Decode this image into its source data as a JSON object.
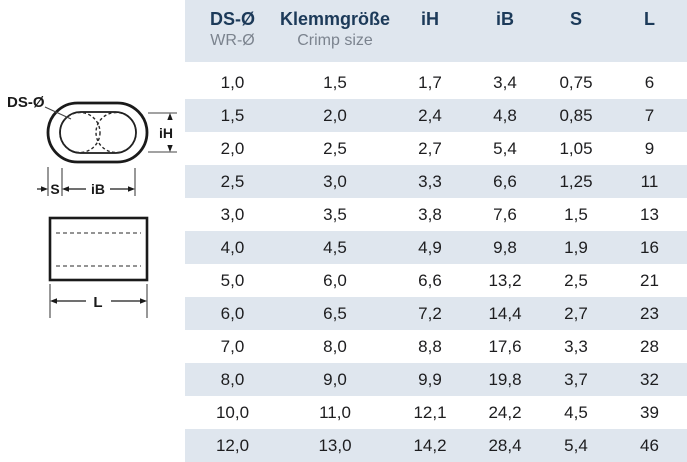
{
  "header": {
    "columns": [
      {
        "label": "DS-Ø",
        "sublabel": "WR-Ø"
      },
      {
        "label": "Klemmgröße",
        "sublabel": "Crimp size"
      },
      {
        "label": "iH",
        "sublabel": ""
      },
      {
        "label": "iB",
        "sublabel": ""
      },
      {
        "label": "S",
        "sublabel": ""
      },
      {
        "label": "L",
        "sublabel": ""
      }
    ]
  },
  "table": {
    "rows": [
      [
        "1,0",
        "1,5",
        "1,7",
        "3,4",
        "0,75",
        "6"
      ],
      [
        "1,5",
        "2,0",
        "2,4",
        "4,8",
        "0,85",
        "7"
      ],
      [
        "2,0",
        "2,5",
        "2,7",
        "5,4",
        "1,05",
        "9"
      ],
      [
        "2,5",
        "3,0",
        "3,3",
        "6,6",
        "1,25",
        "11"
      ],
      [
        "3,0",
        "3,5",
        "3,8",
        "7,6",
        "1,5",
        "13"
      ],
      [
        "4,0",
        "4,5",
        "4,9",
        "9,8",
        "1,9",
        "16"
      ],
      [
        "5,0",
        "6,0",
        "6,6",
        "13,2",
        "2,5",
        "21"
      ],
      [
        "6,0",
        "6,5",
        "7,2",
        "14,4",
        "2,7",
        "23"
      ],
      [
        "7,0",
        "8,0",
        "8,8",
        "17,6",
        "3,3",
        "28"
      ],
      [
        "8,0",
        "9,0",
        "9,9",
        "19,8",
        "3,7",
        "32"
      ],
      [
        "10,0",
        "11,0",
        "12,1",
        "24,2",
        "4,5",
        "39"
      ],
      [
        "12,0",
        "13,0",
        "14,2",
        "28,4",
        "5,4",
        "46"
      ]
    ]
  },
  "diagram": {
    "labels": {
      "ds": "DS-Ø",
      "ih": "iH",
      "s": "S",
      "ib": "iB",
      "l": "L"
    }
  },
  "colors": {
    "header_bg": "#dfe6ee",
    "stripe_bg": "#dfe6ee",
    "heading_text": "#1c3a59",
    "subheading_text": "#7b838e",
    "body_text": "#1d1d1f",
    "drawing_line": "#1a1a1a"
  }
}
